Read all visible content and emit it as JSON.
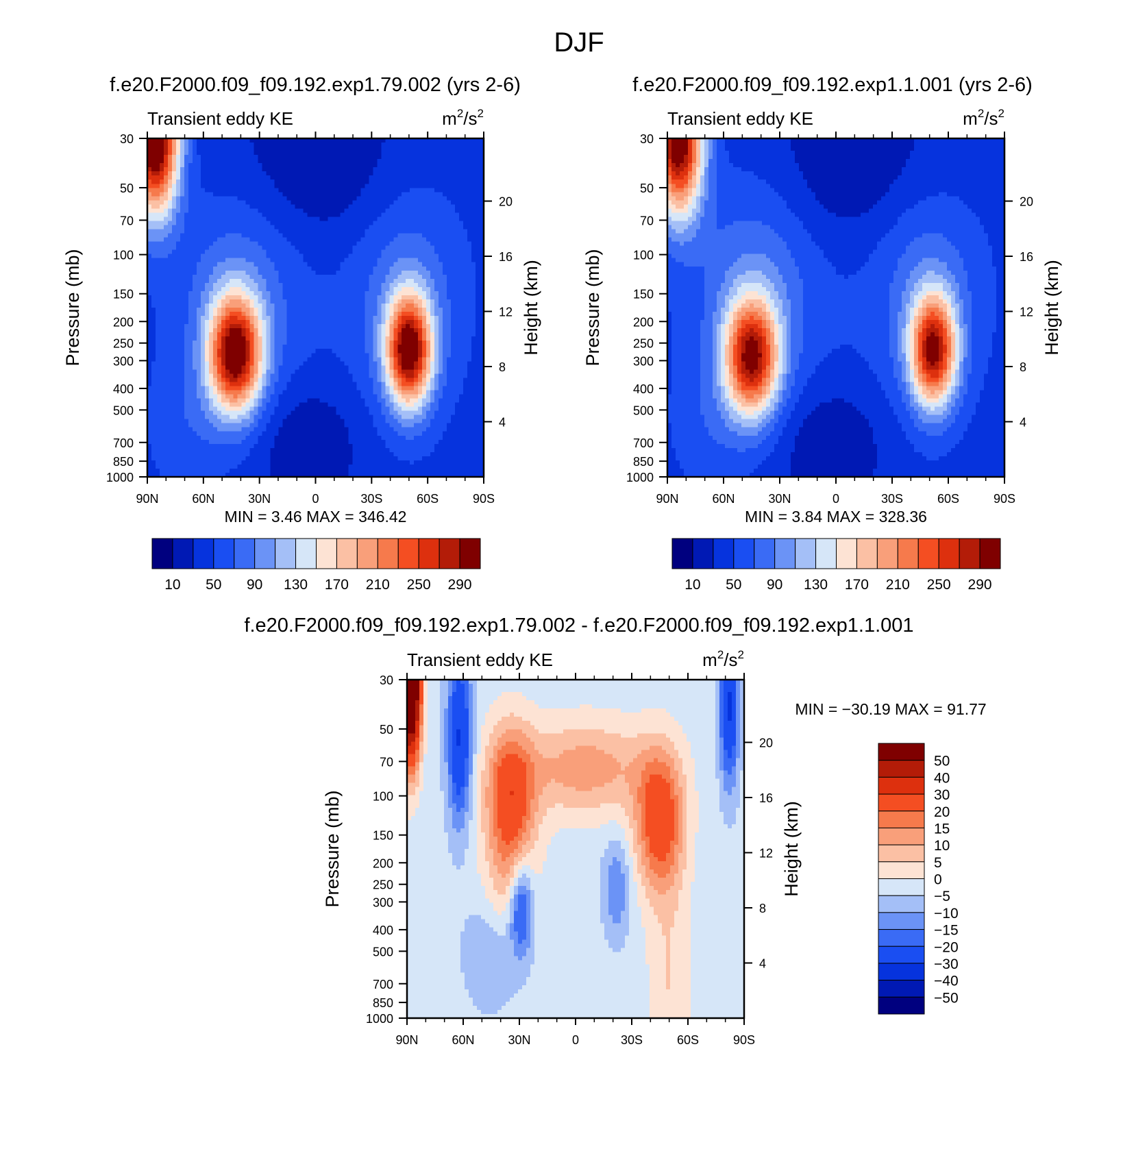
{
  "figure": {
    "title": "DJF"
  },
  "colors": {
    "main_palette": [
      "#00007f",
      "#0019b4",
      "#0633dd",
      "#1a4ef2",
      "#3a6bf5",
      "#6b93f6",
      "#a4bff7",
      "#d6e6f8",
      "#fde3d4",
      "#fbc0a4",
      "#f99f7a",
      "#f67a4c",
      "#f44e22",
      "#dd300e",
      "#b31c08",
      "#7f0000"
    ],
    "diff_palette": [
      "#00007f",
      "#0019b4",
      "#0633dd",
      "#1a4ef2",
      "#3a6bf5",
      "#6b93f6",
      "#a4bff7",
      "#d6e6f8",
      "#fde3d4",
      "#fbc0a4",
      "#f99f7a",
      "#f67a4c",
      "#f44e22",
      "#dd300e",
      "#b31c08",
      "#7f0000"
    ]
  },
  "chart_data": [
    {
      "type": "heatmap",
      "id": "panel1",
      "title": "f.e20.F2000.f09_f09.192.exp1.79.002 (yrs 2-6)",
      "left_label": "Transient eddy KE",
      "units_base": "m",
      "units_exp": "2",
      "units_sep": "/s",
      "units_exp2": "2",
      "ylabel": "Pressure (mb)",
      "ylabel_right": "Height (km)",
      "xlim": [
        90,
        -90
      ],
      "x_ticks": [
        {
          "v": 90,
          "label": "90N"
        },
        {
          "v": 60,
          "label": "60N"
        },
        {
          "v": 30,
          "label": "30N"
        },
        {
          "v": 0,
          "label": "0"
        },
        {
          "v": -30,
          "label": "30S"
        },
        {
          "v": -60,
          "label": "60S"
        },
        {
          "v": -90,
          "label": "90S"
        }
      ],
      "y_ticks": [
        30,
        50,
        70,
        100,
        150,
        200,
        250,
        300,
        400,
        500,
        700,
        850,
        1000
      ],
      "ylim": [
        30,
        1000
      ],
      "y_right_ticks": [
        4,
        8,
        12,
        16,
        20
      ],
      "min_label": "MIN =",
      "min_value": "3.46",
      "max_label": "MAX =",
      "max_value": "346.42",
      "colorbar": {
        "orientation": "horizontal",
        "levels": [
          10,
          30,
          50,
          70,
          90,
          110,
          130,
          150,
          170,
          190,
          210,
          230,
          250,
          270,
          290
        ],
        "labels": [
          "10",
          "50",
          "90",
          "130",
          "170",
          "210",
          "250",
          "290"
        ]
      },
      "features": [
        {
          "name": "polar-stratosphere-max",
          "lat": 84,
          "p": 30,
          "value": 340
        },
        {
          "name": "nh-jet-max",
          "lat": 43,
          "p": 280,
          "value": 290
        },
        {
          "name": "sh-jet-max",
          "lat": -50,
          "p": 270,
          "value": 280
        },
        {
          "name": "upper-trop-min",
          "lat": -5,
          "p": 40,
          "value": 10
        },
        {
          "name": "tropical-min",
          "lat": 2,
          "p": 720,
          "value": 10
        }
      ]
    },
    {
      "type": "heatmap",
      "id": "panel2",
      "title": "f.e20.F2000.f09_f09.192.exp1.1.001 (yrs 2-6)",
      "left_label": "Transient eddy KE",
      "units_base": "m",
      "units_exp": "2",
      "units_sep": "/s",
      "units_exp2": "2",
      "ylabel": "Pressure (mb)",
      "ylabel_right": "Height (km)",
      "xlim": [
        90,
        -90
      ],
      "x_ticks": [
        {
          "v": 90,
          "label": "90N"
        },
        {
          "v": 60,
          "label": "60N"
        },
        {
          "v": 30,
          "label": "30N"
        },
        {
          "v": 0,
          "label": "0"
        },
        {
          "v": -30,
          "label": "30S"
        },
        {
          "v": -60,
          "label": "60S"
        },
        {
          "v": -90,
          "label": "90S"
        }
      ],
      "y_ticks": [
        30,
        50,
        70,
        100,
        150,
        200,
        250,
        300,
        400,
        500,
        700,
        850,
        1000
      ],
      "ylim": [
        30,
        1000
      ],
      "y_right_ticks": [
        4,
        8,
        12,
        16,
        20
      ],
      "min_label": "MIN =",
      "min_value": "3.84",
      "max_label": "MAX =",
      "max_value": "328.36",
      "colorbar": {
        "orientation": "horizontal",
        "levels": [
          10,
          30,
          50,
          70,
          90,
          110,
          130,
          150,
          170,
          190,
          210,
          230,
          250,
          270,
          290
        ],
        "labels": [
          "10",
          "50",
          "90",
          "130",
          "170",
          "210",
          "250",
          "290"
        ]
      },
      "features": [
        {
          "name": "polar-stratosphere-max",
          "lat": 82,
          "p": 30,
          "value": 320
        },
        {
          "name": "nh-jet-max",
          "lat": 45,
          "p": 290,
          "value": 270
        },
        {
          "name": "sh-jet-max",
          "lat": -52,
          "p": 270,
          "value": 260
        },
        {
          "name": "upper-trop-min",
          "lat": -32,
          "p": 35,
          "value": 10
        },
        {
          "name": "tropical-min",
          "lat": 2,
          "p": 720,
          "value": 10
        }
      ]
    },
    {
      "type": "heatmap",
      "id": "panel3",
      "title": "f.e20.F2000.f09_f09.192.exp1.79.002 - f.e20.F2000.f09_f09.192.exp1.1.001",
      "left_label": "Transient eddy KE",
      "units_base": "m",
      "units_exp": "2",
      "units_sep": "/s",
      "units_exp2": "2",
      "ylabel": "Pressure (mb)",
      "ylabel_right": "Height (km)",
      "xlim": [
        90,
        -90
      ],
      "x_ticks": [
        {
          "v": 90,
          "label": "90N"
        },
        {
          "v": 60,
          "label": "60N"
        },
        {
          "v": 30,
          "label": "30N"
        },
        {
          "v": 0,
          "label": "0"
        },
        {
          "v": -30,
          "label": "30S"
        },
        {
          "v": -60,
          "label": "60S"
        },
        {
          "v": -90,
          "label": "90S"
        }
      ],
      "y_ticks": [
        30,
        50,
        70,
        100,
        150,
        200,
        250,
        300,
        400,
        500,
        700,
        850,
        1000
      ],
      "ylim": [
        30,
        1000
      ],
      "y_right_ticks": [
        4,
        8,
        12,
        16,
        20
      ],
      "min_label": "MIN =",
      "min_value": "-30.19",
      "max_label": "MAX =",
      "max_value": "91.77",
      "colorbar": {
        "orientation": "vertical",
        "levels": [
          -50,
          -40,
          -30,
          -20,
          -15,
          -10,
          -5,
          0,
          5,
          10,
          15,
          20,
          30,
          40,
          50
        ],
        "labels": [
          "50",
          "40",
          "30",
          "20",
          "15",
          "10",
          "5",
          "0",
          "-5",
          "-10",
          "-15",
          "-20",
          "-30",
          "-40",
          "-50"
        ]
      },
      "features": [
        {
          "name": "polar-strat-positive",
          "lat": 87,
          "p": 30,
          "value": 90
        },
        {
          "name": "nh-upper-positive",
          "lat": 35,
          "p": 100,
          "value": 30
        },
        {
          "name": "sh-upper-positive",
          "lat": -45,
          "p": 130,
          "value": 30
        },
        {
          "name": "nh-mid-negative",
          "lat": 30,
          "p": 300,
          "value": -25
        },
        {
          "name": "nh-strat-negative",
          "lat": 62,
          "p": 50,
          "value": -30
        },
        {
          "name": "sh-polar-negative",
          "lat": -82,
          "p": 40,
          "value": -30
        }
      ]
    }
  ]
}
